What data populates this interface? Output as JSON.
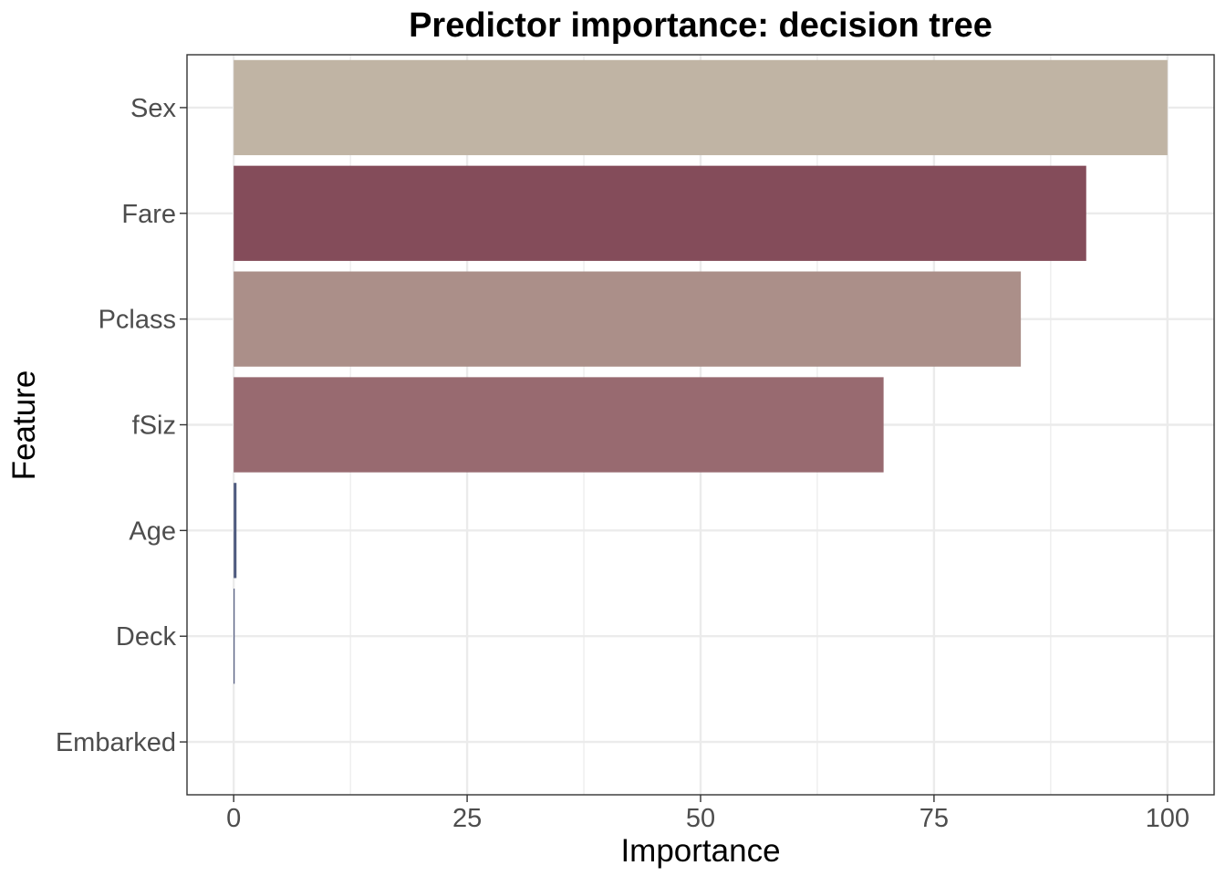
{
  "chart_data": {
    "type": "bar",
    "orientation": "horizontal",
    "title": "Predictor importance: decision tree",
    "xlabel": "Importance",
    "ylabel": "Feature",
    "categories": [
      "Sex",
      "Fare",
      "Pclass",
      "fSiz",
      "Age",
      "Deck",
      "Embarked"
    ],
    "values": [
      100,
      91.3,
      84.3,
      69.6,
      0.3,
      0.1,
      0
    ],
    "colors": [
      "#c0b4a4",
      "#844c5a",
      "#ab8f89",
      "#986a70",
      "#4e5a7e",
      "#3a4470",
      "#3a4470"
    ],
    "xlim": [
      -5,
      105
    ],
    "xticks": [
      0,
      25,
      50,
      75,
      100
    ],
    "grid": true,
    "legend": "none"
  }
}
